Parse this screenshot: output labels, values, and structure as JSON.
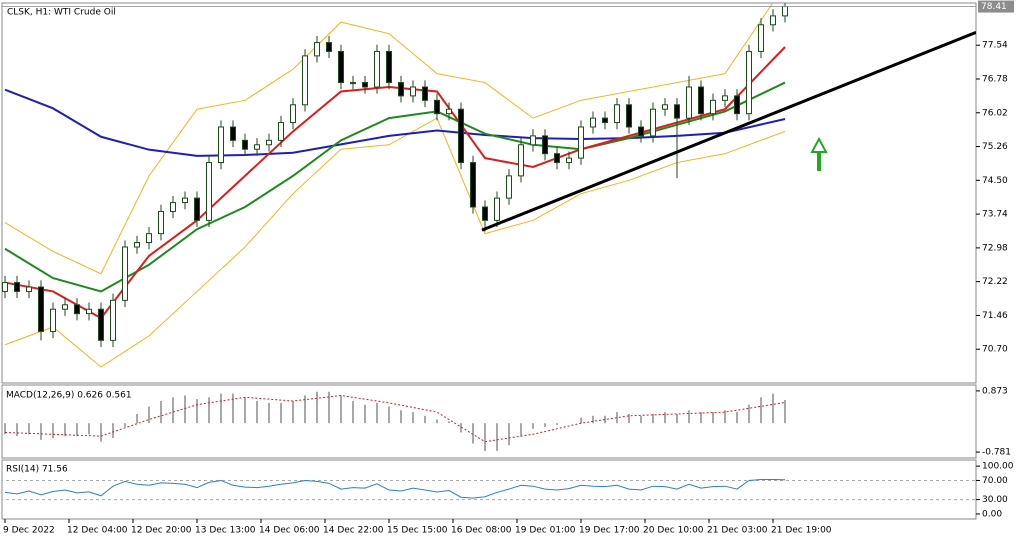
{
  "chart_data": [
    {
      "type": "candlestick",
      "title": "CLSK, H1:  WTI Crude Oil",
      "xlim": [
        -1.25,
        242.75
      ],
      "xticks": [
        {
          "value": 0,
          "label": "9 Dec 2022"
        },
        {
          "value": 16,
          "label": "12 Dec 04:00"
        },
        {
          "value": 32,
          "label": "12 Dec 20:00"
        },
        {
          "value": 48,
          "label": "13 Dec 13:00"
        },
        {
          "value": 64,
          "label": "14 Dec 06:00"
        },
        {
          "value": 80,
          "label": "14 Dec 22:00"
        },
        {
          "value": 96,
          "label": "15 Dec 15:00"
        },
        {
          "value": 112,
          "label": "16 Dec 08:00"
        },
        {
          "value": 128,
          "label": "19 Dec 01:00"
        },
        {
          "value": 144,
          "label": "19 Dec 17:00"
        },
        {
          "value": 160,
          "label": "20 Dec 10:00"
        },
        {
          "value": 176,
          "label": "21 Dec 03:00"
        },
        {
          "value": 192,
          "label": "21 Dec 19:00"
        }
      ],
      "ylim": [
        69.94,
        78.49
      ],
      "yticks": [
        {
          "value": 70.7,
          "label": "70.70"
        },
        {
          "value": 71.46,
          "label": "71.46"
        },
        {
          "value": 72.22,
          "label": "72.22"
        },
        {
          "value": 72.98,
          "label": "72.98"
        },
        {
          "value": 73.74,
          "label": "73.74"
        },
        {
          "value": 74.5,
          "label": "74.50"
        },
        {
          "value": 75.26,
          "label": "75.26"
        },
        {
          "value": 76.02,
          "label": "76.02"
        },
        {
          "value": 76.78,
          "label": "76.78"
        },
        {
          "value": 77.54,
          "label": "77.54"
        }
      ],
      "last_price": 78.41,
      "up_color": "#ffffff",
      "down_color": "#000000",
      "wick_color": "#1b4d1b",
      "candles": {
        "x": [
          0,
          3,
          6,
          9,
          12,
          15,
          18,
          21,
          24,
          27,
          30,
          33,
          36,
          39,
          42,
          45,
          48,
          51,
          54,
          57,
          60,
          63,
          66,
          69,
          72,
          75,
          78,
          81,
          84,
          87,
          90,
          93,
          96,
          99,
          102,
          105,
          108,
          111,
          114,
          117,
          120,
          123,
          126,
          129,
          132,
          135,
          138,
          141,
          144,
          147,
          150,
          153,
          156,
          159,
          162,
          165,
          168,
          171,
          174,
          177,
          180,
          183,
          186,
          189,
          192,
          195
        ],
        "open": [
          72.0,
          72.2,
          72.0,
          72.1,
          71.1,
          71.6,
          71.7,
          71.5,
          71.6,
          70.9,
          71.8,
          73.0,
          73.1,
          73.3,
          73.8,
          74.0,
          74.1,
          73.6,
          74.9,
          75.7,
          75.4,
          75.2,
          75.3,
          75.4,
          75.8,
          76.2,
          77.3,
          77.6,
          77.4,
          76.7,
          76.7,
          76.6,
          77.4,
          76.7,
          76.4,
          76.6,
          76.3,
          76.0,
          76.1,
          74.9,
          73.9,
          73.6,
          74.1,
          74.6,
          75.3,
          75.5,
          75.1,
          74.9,
          75.0,
          75.7,
          75.9,
          75.8,
          76.2,
          75.7,
          75.5,
          76.1,
          76.2,
          75.9,
          76.6,
          76.0,
          76.3,
          76.4,
          76.0,
          77.4,
          78.0,
          78.2
        ],
        "high": [
          72.35,
          72.35,
          72.25,
          72.25,
          71.75,
          71.85,
          71.85,
          71.75,
          71.75,
          71.95,
          73.15,
          73.25,
          73.45,
          73.95,
          74.15,
          74.25,
          74.25,
          75.05,
          75.85,
          75.85,
          75.55,
          75.45,
          75.55,
          75.95,
          76.35,
          77.45,
          77.75,
          77.75,
          77.55,
          76.85,
          76.85,
          77.55,
          77.55,
          76.85,
          76.75,
          76.75,
          76.45,
          76.25,
          76.25,
          75.05,
          74.05,
          74.25,
          74.75,
          75.45,
          75.65,
          75.65,
          75.25,
          75.15,
          75.85,
          76.05,
          76.05,
          76.35,
          76.35,
          75.85,
          76.25,
          76.35,
          76.35,
          76.85,
          76.75,
          76.45,
          76.55,
          76.55,
          77.55,
          78.15,
          78.35,
          78.5
        ],
        "low": [
          71.85,
          71.85,
          71.85,
          70.9,
          70.95,
          71.45,
          71.35,
          71.35,
          70.75,
          70.75,
          71.65,
          72.85,
          72.95,
          73.15,
          73.65,
          73.85,
          73.45,
          73.45,
          74.75,
          75.25,
          75.05,
          75.05,
          75.15,
          75.25,
          75.65,
          76.05,
          77.15,
          77.25,
          76.55,
          76.55,
          76.45,
          76.45,
          76.55,
          76.25,
          76.25,
          76.15,
          75.85,
          75.85,
          74.75,
          73.75,
          73.35,
          73.45,
          73.95,
          74.45,
          75.15,
          74.95,
          74.75,
          74.75,
          74.85,
          75.55,
          75.65,
          75.65,
          75.55,
          75.35,
          75.35,
          75.95,
          74.55,
          75.75,
          75.85,
          75.85,
          76.15,
          75.85,
          75.85,
          77.25,
          77.85,
          78.05
        ],
        "close": [
          72.2,
          72.0,
          72.1,
          71.1,
          71.6,
          71.7,
          71.5,
          71.6,
          70.9,
          71.8,
          73.0,
          73.1,
          73.3,
          73.8,
          74.0,
          74.1,
          73.6,
          74.9,
          75.7,
          75.4,
          75.2,
          75.3,
          75.4,
          75.8,
          76.2,
          77.3,
          77.6,
          77.4,
          76.7,
          76.7,
          76.6,
          77.4,
          76.7,
          76.4,
          76.6,
          76.3,
          76.0,
          76.1,
          74.9,
          73.9,
          73.6,
          74.1,
          74.6,
          75.3,
          75.5,
          75.1,
          74.9,
          75.0,
          75.7,
          75.9,
          75.8,
          76.2,
          75.7,
          75.5,
          76.1,
          76.2,
          75.9,
          76.6,
          76.0,
          76.3,
          76.4,
          76.0,
          77.4,
          78.0,
          78.2,
          78.41
        ]
      },
      "lines": {
        "x": [
          0,
          12,
          24,
          36,
          48,
          60,
          72,
          84,
          96,
          108,
          120,
          132,
          144,
          156,
          168,
          180,
          195
        ],
        "series": [
          {
            "color": "#f5b31c",
            "width": 1,
            "values": [
              73.55,
              72.9,
              72.4,
              74.6,
              76.1,
              76.3,
              77.0,
              78.06,
              77.8,
              76.9,
              76.7,
              75.9,
              76.3,
              76.5,
              76.7,
              76.9,
              78.9
            ]
          },
          {
            "color": "#f5b31c",
            "width": 1,
            "values": [
              70.8,
              71.2,
              70.3,
              71.0,
              72.0,
              73.0,
              74.2,
              75.2,
              75.3,
              75.9,
              73.3,
              73.6,
              74.2,
              74.5,
              74.9,
              75.1,
              75.6
            ]
          },
          {
            "color": "#1f1fb4",
            "width": 2,
            "values": [
              76.54,
              76.12,
              75.48,
              75.19,
              75.05,
              75.07,
              75.12,
              75.31,
              75.5,
              75.62,
              75.52,
              75.45,
              75.43,
              75.45,
              75.5,
              75.57,
              75.88
            ]
          },
          {
            "color": "#1e8a1e",
            "width": 2,
            "values": [
              72.96,
              72.3,
              72.0,
              72.6,
              73.4,
              73.9,
              74.6,
              75.4,
              75.9,
              76.05,
              75.55,
              75.3,
              75.2,
              75.45,
              75.75,
              76.05,
              76.7
            ]
          },
          {
            "color": "#e01b1b",
            "width": 2,
            "values": [
              72.2,
              72.0,
              71.4,
              72.8,
              73.6,
              74.6,
              75.6,
              76.5,
              76.6,
              76.5,
              75.0,
              74.8,
              75.2,
              75.5,
              75.8,
              76.1,
              77.5
            ]
          }
        ]
      },
      "trendline": {
        "x": [
          119.25,
          242.75
        ],
        "y": [
          73.38,
          77.83
        ],
        "color": "#000000"
      }
    },
    {
      "type": "macd",
      "title": "MACD(12,26,9) 0.626 0.561",
      "xlim": [
        -1.25,
        242.75
      ],
      "ylim": [
        -0.941,
        1.033
      ],
      "yticks": [
        0.873,
        -0.781
      ],
      "histogram_color": "#a8a8a8",
      "signal_color": "#d42020",
      "x": [
        0,
        3,
        6,
        9,
        12,
        15,
        18,
        21,
        24,
        27,
        30,
        33,
        36,
        39,
        42,
        45,
        48,
        51,
        54,
        57,
        60,
        63,
        66,
        69,
        72,
        75,
        78,
        81,
        84,
        87,
        90,
        93,
        96,
        99,
        102,
        105,
        108,
        111,
        114,
        117,
        120,
        123,
        126,
        129,
        132,
        135,
        138,
        141,
        144,
        147,
        150,
        153,
        156,
        159,
        162,
        165,
        168,
        171,
        174,
        177,
        180,
        183,
        186,
        189,
        192,
        195
      ],
      "histogram": [
        -0.3,
        -0.35,
        -0.3,
        -0.45,
        -0.4,
        -0.35,
        -0.35,
        -0.3,
        -0.5,
        -0.4,
        -0.1,
        0.25,
        0.45,
        0.6,
        0.7,
        0.75,
        0.65,
        0.7,
        0.8,
        0.8,
        0.7,
        0.6,
        0.55,
        0.55,
        0.6,
        0.75,
        0.85,
        0.85,
        0.75,
        0.6,
        0.5,
        0.55,
        0.45,
        0.35,
        0.3,
        0.2,
        0.1,
        0.05,
        -0.25,
        -0.55,
        -0.75,
        -0.75,
        -0.6,
        -0.35,
        -0.15,
        -0.1,
        -0.05,
        0.0,
        0.15,
        0.2,
        0.2,
        0.3,
        0.25,
        0.2,
        0.25,
        0.3,
        0.25,
        0.35,
        0.3,
        0.3,
        0.35,
        0.3,
        0.5,
        0.7,
        0.8,
        0.626
      ],
      "signal": {
        "x": [
          0,
          12,
          24,
          36,
          48,
          60,
          72,
          84,
          96,
          108,
          120,
          132,
          144,
          156,
          168,
          180,
          195
        ],
        "values": [
          -0.25,
          -0.3,
          -0.35,
          0.1,
          0.5,
          0.7,
          0.6,
          0.75,
          0.55,
          0.3,
          -0.5,
          -0.3,
          0.0,
          0.2,
          0.25,
          0.3,
          0.561
        ]
      }
    },
    {
      "type": "rsi",
      "title": "RSI(14) 71.56",
      "xlim": [
        -1.25,
        242.75
      ],
      "ylim": [
        -10.6,
        112.8
      ],
      "yticks": [
        {
          "value": 100,
          "label": "100.00"
        },
        {
          "value": 70,
          "label": "70.00"
        },
        {
          "value": 30,
          "label": "30.00"
        },
        {
          "value": 0,
          "label": "0.00"
        }
      ],
      "levels": [
        70,
        30
      ],
      "color": "#2a7fd4",
      "x": [
        0,
        3,
        6,
        9,
        12,
        15,
        18,
        21,
        24,
        27,
        30,
        33,
        36,
        39,
        42,
        45,
        48,
        51,
        54,
        57,
        60,
        63,
        66,
        69,
        72,
        75,
        78,
        81,
        84,
        87,
        90,
        93,
        96,
        99,
        102,
        105,
        108,
        111,
        114,
        117,
        120,
        123,
        126,
        129,
        132,
        135,
        138,
        141,
        144,
        147,
        150,
        153,
        156,
        159,
        162,
        165,
        168,
        171,
        174,
        177,
        180,
        183,
        186,
        189,
        192,
        195
      ],
      "values": [
        45,
        42,
        48,
        40,
        47,
        50,
        44,
        46,
        38,
        58,
        68,
        62,
        60,
        65,
        64,
        62,
        55,
        66,
        70,
        60,
        56,
        55,
        58,
        62,
        65,
        70,
        68,
        64,
        52,
        55,
        54,
        63,
        50,
        48,
        54,
        50,
        46,
        49,
        35,
        33,
        36,
        45,
        52,
        60,
        58,
        52,
        50,
        53,
        60,
        58,
        57,
        60,
        52,
        50,
        58,
        57,
        52,
        62,
        54,
        57,
        58,
        52,
        70,
        72,
        72,
        71.56
      ]
    }
  ]
}
